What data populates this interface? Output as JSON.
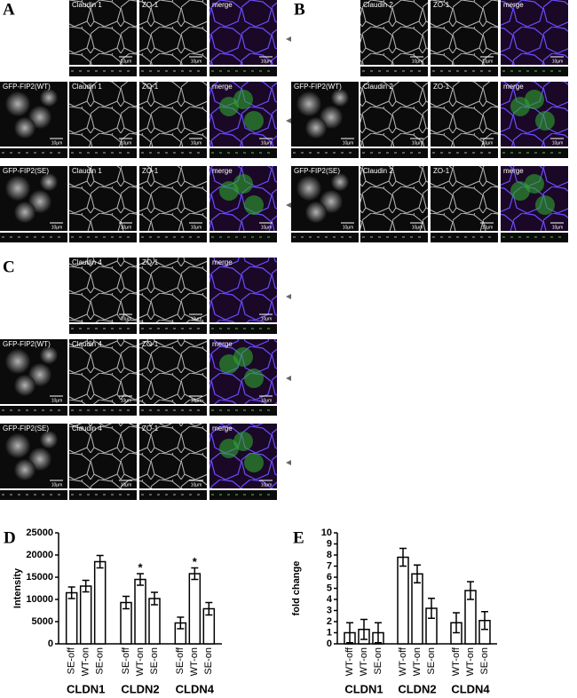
{
  "panels": [
    {
      "letter": "A",
      "rows": [
        {
          "labels": [
            "Claudin 1",
            "ZO-1",
            "merge"
          ]
        },
        {
          "labels": [
            "GFP-FIP2(WT)",
            "Claudin 1",
            "ZO-1",
            "merge"
          ]
        },
        {
          "labels": [
            "GFP-FIP2(SE)",
            "Claudin 1",
            "ZO-1",
            "merge"
          ]
        }
      ]
    },
    {
      "letter": "B",
      "rows": [
        {
          "labels": [
            "Claudin 2",
            "ZO-1",
            "merge"
          ]
        },
        {
          "labels": [
            "GFP-FIP2(WT)",
            "Claudin 2",
            "ZO-1",
            "merge"
          ]
        },
        {
          "labels": [
            "GFP-FIP2(SE)",
            "Claudin 2",
            "ZO-1",
            "merge"
          ]
        }
      ]
    },
    {
      "letter": "C",
      "rows": [
        {
          "labels": [
            "Claudin 4",
            "ZO-1",
            "merge"
          ]
        },
        {
          "labels": [
            "GFP-FIP2(WT)",
            "Claudin 4",
            "ZO-1",
            "merge"
          ]
        },
        {
          "labels": [
            "GFP-FIP2(SE)",
            "Claudin 4",
            "ZO-1",
            "merge"
          ]
        }
      ]
    }
  ],
  "scale_bar": "10µm",
  "chart_data": [
    {
      "type": "bar",
      "label": "D",
      "y_label": "Intensity",
      "categories": [
        "CLDN1",
        "CLDN2",
        "CLDN4"
      ],
      "ylim": [
        0,
        25000
      ],
      "yticks": [
        0,
        5000,
        10000,
        15000,
        20000,
        25000
      ],
      "series": [
        {
          "name": "SE-off",
          "color": "#ffffff",
          "values": [
            11500,
            9300,
            4700
          ],
          "errors": [
            1300,
            1400,
            1300
          ]
        },
        {
          "name": "WT-on",
          "color": "#ffffff",
          "values": [
            13000,
            14500,
            15800
          ],
          "errors": [
            1300,
            1300,
            1300
          ],
          "marks": [
            null,
            "*",
            "*"
          ]
        },
        {
          "name": "SE-on",
          "color": "#ffffff",
          "values": [
            18500,
            10200,
            7900
          ],
          "errors": [
            1400,
            1400,
            1400
          ]
        }
      ]
    },
    {
      "type": "bar",
      "label": "E",
      "y_label": "fold change",
      "categories": [
        "CLDN1",
        "CLDN2",
        "CLDN4"
      ],
      "ylim": [
        0,
        10
      ],
      "yticks": [
        0,
        1,
        2,
        3,
        4,
        5,
        6,
        7,
        8,
        9,
        10
      ],
      "series": [
        {
          "name": "WT-off",
          "color": "#ffffff",
          "values": [
            1.0,
            7.8,
            1.9
          ],
          "errors": [
            0.9,
            0.8,
            0.9
          ]
        },
        {
          "name": "WT-on",
          "color": "#ffffff",
          "values": [
            1.3,
            6.3,
            4.8
          ],
          "errors": [
            0.9,
            0.8,
            0.8
          ]
        },
        {
          "name": "SE-on",
          "color": "#ffffff",
          "values": [
            1.0,
            3.2,
            2.1
          ],
          "errors": [
            0.9,
            0.9,
            0.8
          ]
        }
      ]
    }
  ]
}
